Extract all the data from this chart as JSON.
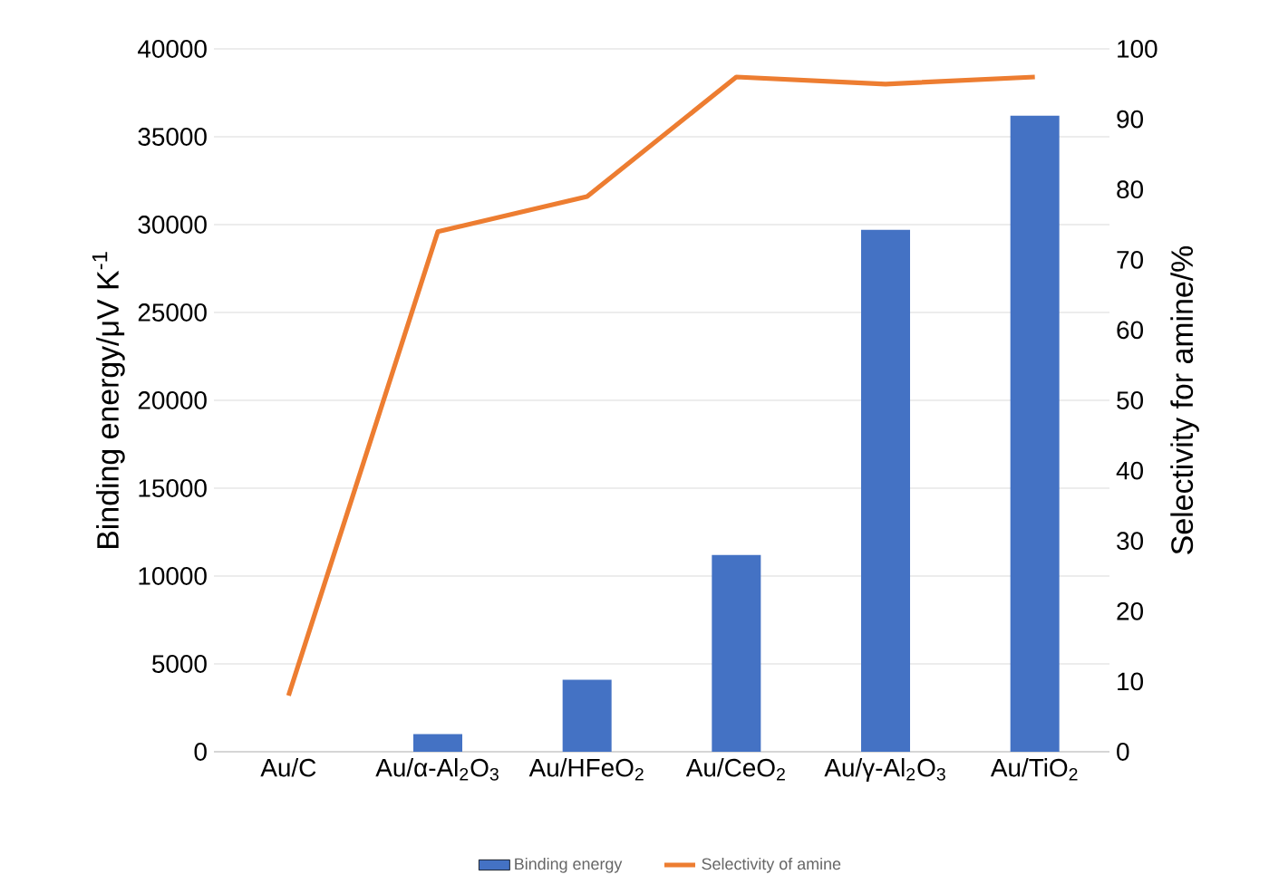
{
  "chart_data": {
    "type": "bar",
    "ylabel": "Binding energy/μV K$^{-1}$",
    "y2label": "Selectivity for amine/%",
    "categories": [
      "Au/C",
      "Au/α-Al$_{2}$O$_{3}$",
      "Au/HFeO$_{2}$",
      "Au/CeO$_{2}$",
      "Au/γ-Al$_{2}$O$_{3}$",
      "Au/TiO$_{2}$"
    ],
    "series": [
      {
        "name": "Binding energy",
        "color": "#4472c4",
        "values": [
          0,
          1000,
          4100,
          11200,
          29700,
          36200
        ]
      },
      {
        "name": "Selectivity of amine",
        "type": "line",
        "axis": "y2",
        "color": "#ed7d31",
        "values": [
          8,
          74,
          79,
          96,
          95,
          96
        ]
      }
    ],
    "ylim": [
      0,
      40000
    ],
    "yticks": [
      0,
      5000,
      10000,
      15000,
      20000,
      25000,
      30000,
      35000,
      40000
    ],
    "y2lim": [
      0,
      100
    ],
    "y2ticks": [
      0,
      10,
      20,
      30,
      40,
      50,
      60,
      70,
      80,
      90,
      100
    ],
    "grid": "y",
    "legend": "bottom",
    "marker": "none"
  }
}
